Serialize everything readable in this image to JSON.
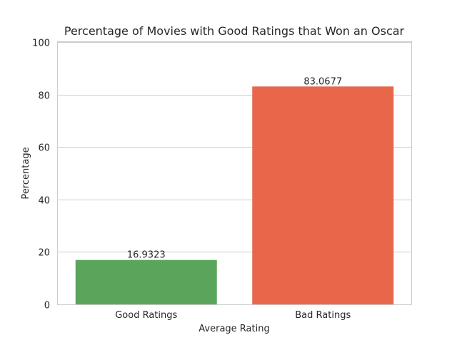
{
  "chart_data": {
    "type": "bar",
    "title": "Percentage of Movies with Good Ratings that Won an Oscar",
    "xlabel": "Average Rating",
    "ylabel": "Percentage",
    "categories": [
      "Good Ratings",
      "Bad Ratings"
    ],
    "values": [
      16.9323,
      83.0677
    ],
    "value_labels": [
      "16.9323",
      "83.0677"
    ],
    "colors": [
      "#5aa55b",
      "#e8674b"
    ],
    "ylim": [
      0,
      100
    ],
    "yticks": [
      0,
      20,
      40,
      60,
      80,
      100
    ],
    "ytick_labels": [
      "0",
      "20",
      "40",
      "60",
      "80",
      "100"
    ],
    "grid": true,
    "legend": false
  }
}
